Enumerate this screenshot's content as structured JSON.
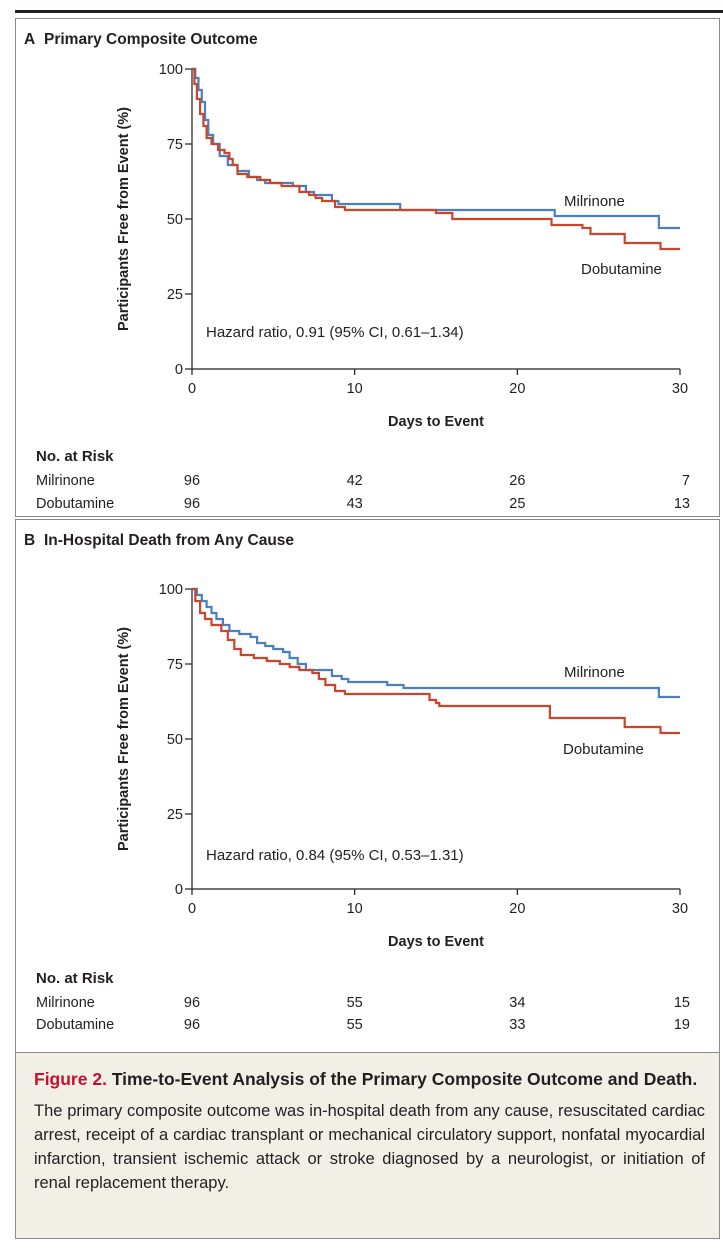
{
  "figure": {
    "caption_label": "Figure 2.",
    "caption_title": "Time-to-Event Analysis of the Primary Composite Outcome and Death.",
    "caption_text": "The primary composite outcome was in-hospital death from any cause, resuscitated cardiac arrest, receipt of a cardiac transplant or mechanical circulatory support, nonfatal myocardial infarction, transient ischemic attack or stroke diagnosed by a neurologist, or initiation of renal replacement therapy."
  },
  "colors": {
    "milrinone": "#4a7fc0",
    "dobutamine": "#c9462c",
    "caption_label": "#c8102e",
    "caption_bg": "#f2efe6"
  },
  "chart_data": [
    {
      "type": "line",
      "panel_letter": "A",
      "title": "Primary Composite Outcome",
      "xlabel": "Days to Event",
      "ylabel": "Participants Free from Event (%)",
      "xlim": [
        0,
        30
      ],
      "ylim": [
        0,
        100
      ],
      "xticks": [
        "0",
        "10",
        "20",
        "30"
      ],
      "yticks": [
        "0",
        "25",
        "50",
        "75",
        "100"
      ],
      "annotation": "Hazard ratio, 0.91 (95% CI, 0.61–1.34)",
      "series": [
        {
          "name": "Milrinone",
          "color": "#4a7fc0",
          "points": [
            [
              0,
              100
            ],
            [
              0.2,
              97
            ],
            [
              0.4,
              93
            ],
            [
              0.6,
              89
            ],
            [
              0.8,
              83
            ],
            [
              1.0,
              78
            ],
            [
              1.3,
              75
            ],
            [
              1.7,
              71
            ],
            [
              2.2,
              68
            ],
            [
              2.8,
              66
            ],
            [
              3.5,
              64
            ],
            [
              4.0,
              63
            ],
            [
              4.5,
              62
            ],
            [
              5.5,
              62
            ],
            [
              6.2,
              61
            ],
            [
              7.0,
              59
            ],
            [
              7.5,
              58
            ],
            [
              8.2,
              58
            ],
            [
              8.6,
              56
            ],
            [
              9.0,
              55
            ],
            [
              12.5,
              55
            ],
            [
              12.8,
              53
            ],
            [
              22.2,
              53
            ],
            [
              22.3,
              51
            ],
            [
              28.6,
              51
            ],
            [
              28.7,
              47
            ],
            [
              30,
              47
            ]
          ]
        },
        {
          "name": "Dobutamine",
          "color": "#c9462c",
          "points": [
            [
              0,
              100
            ],
            [
              0.15,
              95
            ],
            [
              0.3,
              90
            ],
            [
              0.5,
              85
            ],
            [
              0.7,
              81
            ],
            [
              0.9,
              77
            ],
            [
              1.2,
              75
            ],
            [
              1.6,
              73
            ],
            [
              2.0,
              72
            ],
            [
              2.3,
              70
            ],
            [
              2.5,
              68
            ],
            [
              2.8,
              65
            ],
            [
              3.4,
              64
            ],
            [
              4.2,
              63
            ],
            [
              4.8,
              62
            ],
            [
              5.5,
              61
            ],
            [
              6.6,
              59
            ],
            [
              7.2,
              58
            ],
            [
              7.6,
              57
            ],
            [
              8.0,
              56
            ],
            [
              8.8,
              54
            ],
            [
              9.4,
              53
            ],
            [
              14.8,
              53
            ],
            [
              15.0,
              52
            ],
            [
              15.8,
              52
            ],
            [
              16.0,
              50
            ],
            [
              21.8,
              50
            ],
            [
              22.1,
              48
            ],
            [
              24.0,
              47
            ],
            [
              24.5,
              45
            ],
            [
              26.4,
              45
            ],
            [
              26.6,
              42
            ],
            [
              28.6,
              42
            ],
            [
              28.8,
              40
            ],
            [
              30,
              40
            ]
          ]
        }
      ],
      "legend_labels": {
        "milrinone": "Milrinone",
        "dobutamine": "Dobutamine"
      },
      "at_risk": {
        "heading": "No. at Risk",
        "rows": [
          {
            "label": "Milrinone",
            "values": [
              "96",
              "42",
              "26",
              "7"
            ]
          },
          {
            "label": "Dobutamine",
            "values": [
              "96",
              "43",
              "25",
              "13"
            ]
          }
        ]
      }
    },
    {
      "type": "line",
      "panel_letter": "B",
      "title": "In-Hospital Death from Any Cause",
      "xlabel": "Days to Event",
      "ylabel": "Participants Free from Event (%)",
      "xlim": [
        0,
        30
      ],
      "ylim": [
        0,
        100
      ],
      "xticks": [
        "0",
        "10",
        "20",
        "30"
      ],
      "yticks": [
        "0",
        "25",
        "50",
        "75",
        "100"
      ],
      "annotation": "Hazard ratio, 0.84 (95% CI, 0.53–1.31)",
      "series": [
        {
          "name": "Milrinone",
          "color": "#4a7fc0",
          "points": [
            [
              0,
              100
            ],
            [
              0.3,
              98
            ],
            [
              0.6,
              96
            ],
            [
              0.9,
              94
            ],
            [
              1.2,
              92
            ],
            [
              1.5,
              90
            ],
            [
              1.9,
              88
            ],
            [
              2.3,
              86
            ],
            [
              2.9,
              85
            ],
            [
              3.6,
              84
            ],
            [
              4.0,
              82
            ],
            [
              4.5,
              81
            ],
            [
              5.0,
              80
            ],
            [
              5.6,
              79
            ],
            [
              6.0,
              77
            ],
            [
              6.5,
              75
            ],
            [
              7.0,
              73
            ],
            [
              8.2,
              73
            ],
            [
              8.6,
              71
            ],
            [
              9.2,
              70
            ],
            [
              9.6,
              69
            ],
            [
              11.6,
              69
            ],
            [
              12.0,
              68
            ],
            [
              12.8,
              68
            ],
            [
              13.0,
              67
            ],
            [
              28.5,
              67
            ],
            [
              28.7,
              64
            ],
            [
              30,
              64
            ]
          ]
        },
        {
          "name": "Dobutamine",
          "color": "#c9462c",
          "points": [
            [
              0,
              100
            ],
            [
              0.2,
              96
            ],
            [
              0.5,
              92
            ],
            [
              0.8,
              90
            ],
            [
              1.2,
              88
            ],
            [
              1.8,
              86
            ],
            [
              2.2,
              83
            ],
            [
              2.6,
              80
            ],
            [
              3.0,
              78
            ],
            [
              3.8,
              77
            ],
            [
              4.6,
              76
            ],
            [
              5.4,
              75
            ],
            [
              6.0,
              74
            ],
            [
              6.6,
              73
            ],
            [
              7.4,
              72
            ],
            [
              7.8,
              70
            ],
            [
              8.2,
              68
            ],
            [
              8.8,
              66
            ],
            [
              9.4,
              65
            ],
            [
              14.4,
              65
            ],
            [
              14.6,
              63
            ],
            [
              15.0,
              62
            ],
            [
              15.2,
              61
            ],
            [
              21.8,
              61
            ],
            [
              22.0,
              57
            ],
            [
              26.4,
              57
            ],
            [
              26.6,
              54
            ],
            [
              28.6,
              54
            ],
            [
              28.8,
              52
            ],
            [
              30,
              52
            ]
          ]
        }
      ],
      "legend_labels": {
        "milrinone": "Milrinone",
        "dobutamine": "Dobutamine"
      },
      "at_risk": {
        "heading": "No. at Risk",
        "rows": [
          {
            "label": "Milrinone",
            "values": [
              "96",
              "55",
              "34",
              "15"
            ]
          },
          {
            "label": "Dobutamine",
            "values": [
              "96",
              "55",
              "33",
              "19"
            ]
          }
        ]
      }
    }
  ]
}
